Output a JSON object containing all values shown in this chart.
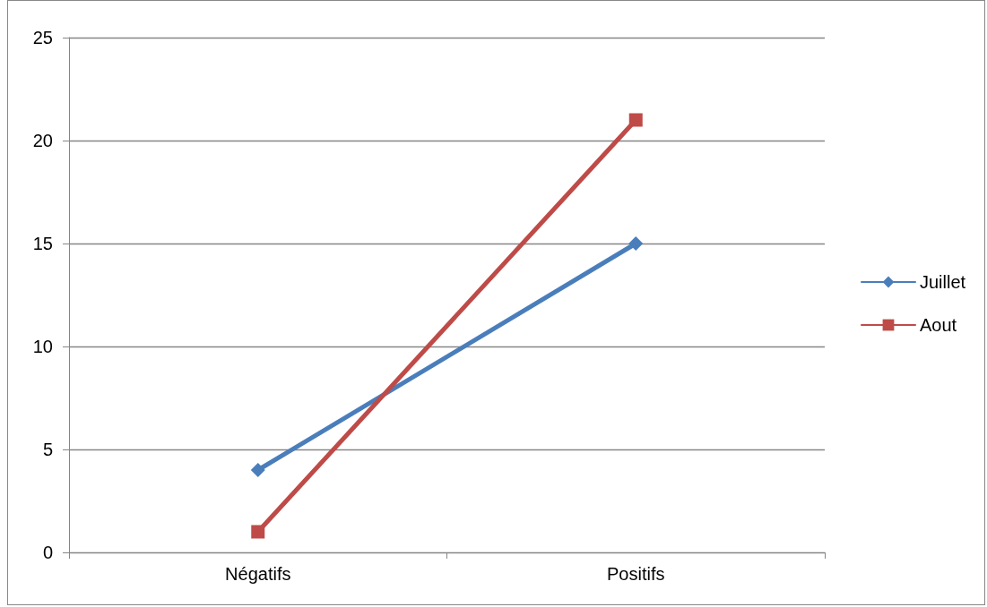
{
  "chart_data": {
    "type": "line",
    "categories": [
      "Négatifs",
      "Positifs"
    ],
    "series": [
      {
        "name": "Juillet",
        "color": "#4a7ebb",
        "values": [
          4,
          15
        ],
        "marker": "diamond"
      },
      {
        "name": "Aout",
        "color": "#be4b48",
        "values": [
          1,
          21
        ],
        "marker": "square"
      }
    ],
    "ylim": [
      0,
      25
    ],
    "yticks": [
      0,
      5,
      10,
      15,
      20,
      25
    ],
    "grid": "y",
    "legend": "right",
    "line_style": "solid"
  }
}
